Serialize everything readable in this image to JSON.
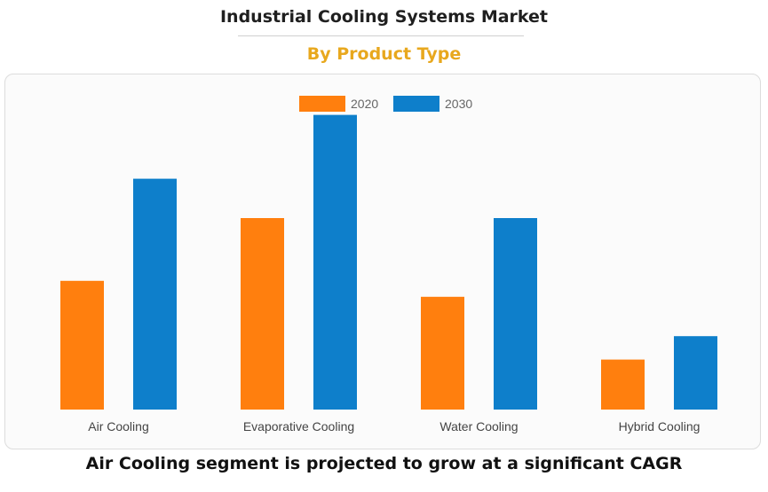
{
  "header": {
    "title": "Industrial Cooling Systems Market",
    "subtitle": "By Product Type",
    "subtitle_color": "#e8a81e"
  },
  "footer": {
    "caption": "Air Cooling segment is projected to grow at a significant CAGR"
  },
  "chart_data": {
    "type": "bar",
    "categories": [
      "Air Cooling",
      "Evaporative Cooling",
      "Water Cooling",
      "Hybrid Cooling"
    ],
    "series": [
      {
        "name": "2020",
        "color": "#ff7f0e",
        "values": [
          121,
          180,
          106,
          47
        ]
      },
      {
        "name": "2030",
        "color": "#0e7fcb",
        "values": [
          217,
          277,
          180,
          69
        ]
      }
    ],
    "ylim": [
      0,
      300
    ],
    "grid": false,
    "legend": "top-center",
    "xlabel": "",
    "ylabel": ""
  }
}
